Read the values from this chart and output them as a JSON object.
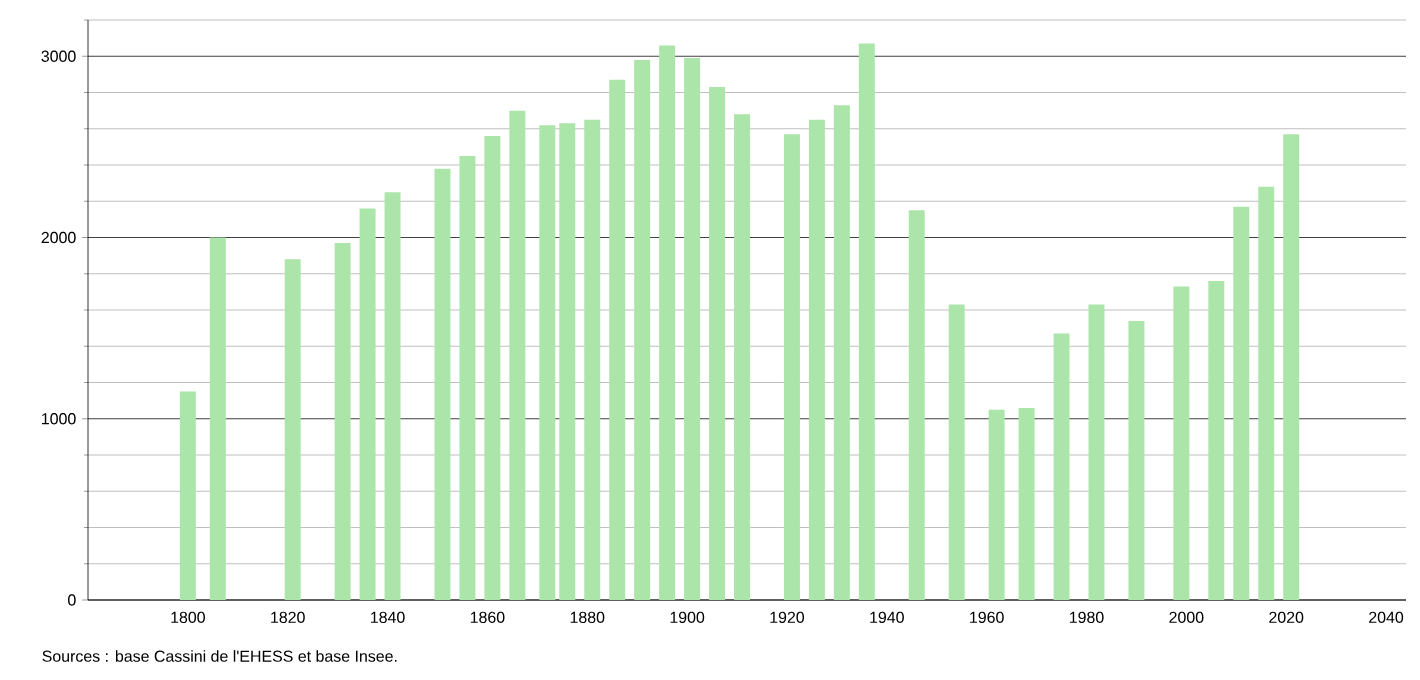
{
  "chart_data": {
    "type": "bar",
    "color": "#ace5aa",
    "x": [
      1800,
      1806,
      1821,
      1831,
      1836,
      1841,
      1851,
      1856,
      1861,
      1866,
      1872,
      1876,
      1881,
      1886,
      1891,
      1896,
      1901,
      1906,
      1911,
      1921,
      1926,
      1931,
      1936,
      1946,
      1954,
      1962,
      1968,
      1975,
      1982,
      1990,
      1999,
      2006,
      2011,
      2016,
      2021
    ],
    "values": [
      1150,
      2000,
      1880,
      1970,
      2160,
      2250,
      2380,
      2450,
      2560,
      2700,
      2620,
      2630,
      2650,
      2870,
      2980,
      3060,
      2990,
      2830,
      2680,
      2570,
      2650,
      2730,
      3070,
      2150,
      1630,
      1050,
      1060,
      1470,
      1630,
      1540,
      1730,
      1760,
      2170,
      2280,
      2570
    ],
    "xlim": [
      1780,
      2044
    ],
    "xticks": [
      1800,
      1820,
      1840,
      1860,
      1880,
      1900,
      1920,
      1940,
      1960,
      1980,
      2000,
      2020,
      2040
    ],
    "ylim": [
      0,
      3200
    ],
    "yticks": [
      0,
      {
        "value": 200,
        "label": null
      },
      {
        "value": 400,
        "label": null
      },
      {
        "value": 600,
        "label": null
      },
      {
        "value": 800,
        "label": null
      },
      1000,
      {
        "value": 1200,
        "label": null
      },
      {
        "value": 1400,
        "label": null
      },
      {
        "value": 1600,
        "label": null
      },
      {
        "value": 1800,
        "label": null
      },
      2000,
      {
        "value": 2200,
        "label": null
      },
      {
        "value": 2400,
        "label": null
      },
      {
        "value": 2600,
        "label": null
      },
      {
        "value": 2800,
        "label": null
      },
      3000,
      {
        "value": 3200,
        "label": null
      }
    ],
    "grid": "y",
    "annotations": [
      "Sources : base Cassini de l'EHESS et base Insee."
    ]
  }
}
